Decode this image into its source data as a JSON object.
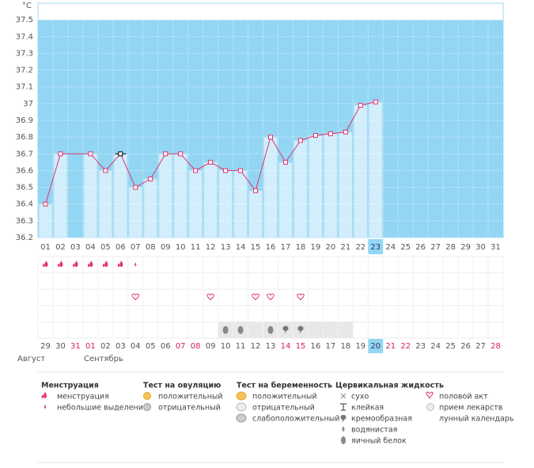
{
  "chart_data": {
    "type": "line",
    "y_unit": "°C",
    "categories": [
      "01",
      "02",
      "03",
      "04",
      "05",
      "06",
      "07",
      "08",
      "09",
      "10",
      "11",
      "12",
      "13",
      "14",
      "15",
      "16",
      "17",
      "18",
      "19",
      "20",
      "21",
      "22",
      "23",
      "24",
      "25",
      "26",
      "27",
      "28",
      "29",
      "30",
      "31"
    ],
    "values": [
      36.4,
      36.7,
      null,
      36.7,
      36.6,
      36.7,
      36.5,
      36.55,
      36.7,
      36.7,
      36.6,
      36.65,
      36.6,
      36.6,
      36.48,
      36.8,
      36.65,
      36.78,
      36.81,
      36.82,
      36.83,
      36.99,
      37.01,
      null,
      null,
      null,
      null,
      null,
      null,
      null,
      null
    ],
    "line_color": "#e2336d",
    "bar_color": "#d2eefc",
    "plot_color": "#92d6f3",
    "ylim": [
      36.2,
      37.6
    ],
    "yticks": [
      36.2,
      36.3,
      36.4,
      36.5,
      36.6,
      36.7,
      36.8,
      36.9,
      37,
      37.1,
      37.2,
      37.3,
      37.4,
      37.5
    ],
    "today_index": 22,
    "selected_index": 5,
    "markers": {
      "menstruation": [
        0,
        1,
        2,
        3,
        4,
        5
      ],
      "spotting": [
        6
      ],
      "intercourse": [
        6,
        11,
        14,
        15,
        17
      ],
      "egg_white": [
        12,
        13,
        15
      ],
      "creamy": [
        16,
        17
      ]
    },
    "fertile_window": [
      12,
      20
    ],
    "cycle_dates": [
      "29",
      "30",
      "31",
      "01",
      "02",
      "03",
      "04",
      "05",
      "06",
      "07",
      "08",
      "09",
      "10",
      "11",
      "12",
      "13",
      "14",
      "15",
      "16",
      "17",
      "18",
      "19",
      "20",
      "21",
      "22",
      "23",
      "24",
      "25",
      "26",
      "27",
      "28"
    ],
    "weekend_indices": [
      2,
      3,
      9,
      10,
      16,
      17,
      23,
      24,
      30
    ],
    "months": [
      "Август",
      "Сентябрь"
    ]
  },
  "legend": {
    "menstruation": {
      "title": "Менструация",
      "items": [
        "менструация",
        "небольшие выделения"
      ]
    },
    "ovulation_test": {
      "title": "Тест на овуляцию",
      "items": [
        "положительный",
        "отрицательный"
      ]
    },
    "pregnancy_test": {
      "title": "Тест на беременность",
      "items": [
        "положительный",
        "отрицательный",
        "слабоположительный"
      ]
    },
    "cervical_fluid": {
      "title": "Цервикальная жидкость",
      "items": [
        "сухо",
        "клейкая",
        "кремообразная",
        "водянистая",
        "яичный белок"
      ]
    },
    "other": {
      "items": [
        "половой акт",
        "прием лекарств",
        "лунный календарь"
      ]
    }
  }
}
